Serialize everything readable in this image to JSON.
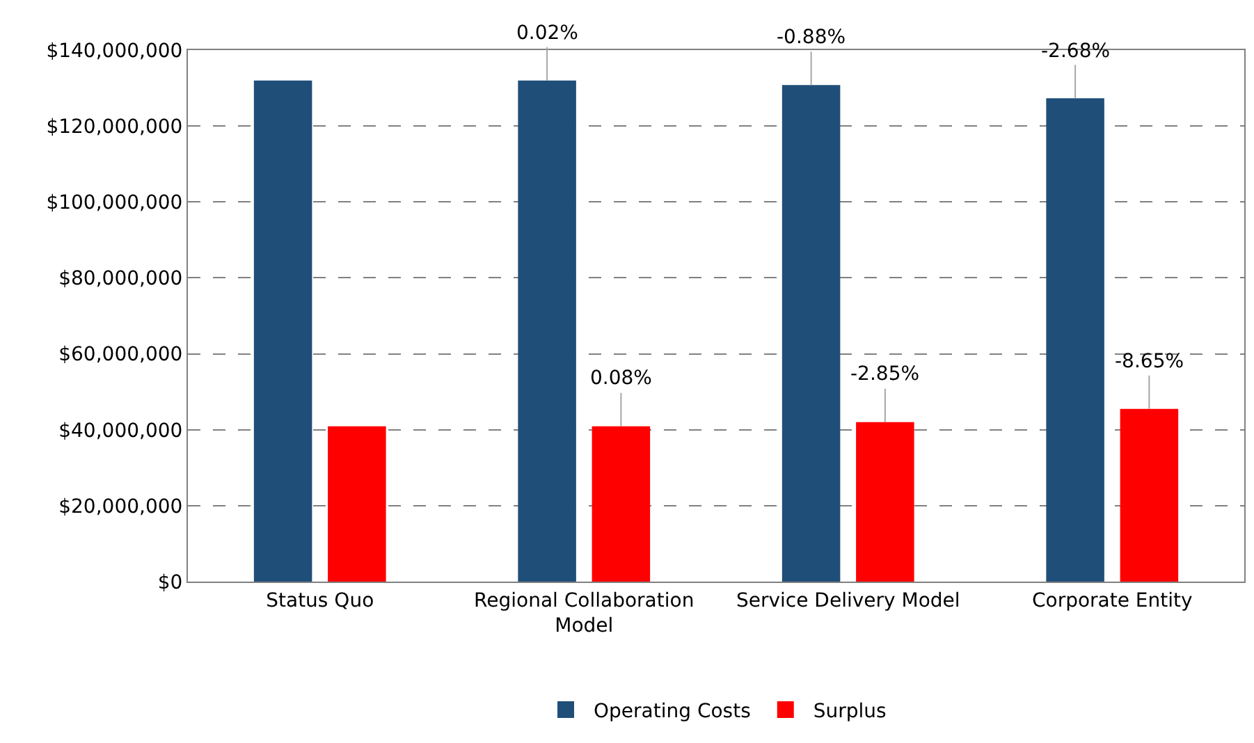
{
  "chart_data": {
    "type": "bar",
    "categories": [
      "Status Quo",
      "Regional Collaboration Model",
      "Service Delivery Model",
      "Corporate Entity"
    ],
    "series": [
      {
        "name": "Operating Costs",
        "color": "#1f4e79",
        "values": [
          132000000,
          132000000,
          130800000,
          127300000
        ]
      },
      {
        "name": "Surplus",
        "color": "#ff0000",
        "values": [
          40900000,
          40900000,
          42000000,
          45500000
        ]
      }
    ],
    "annotations": [
      {
        "text": "0.02%",
        "y": 132000000
      },
      {
        "text": "-0.88%",
        "y": 130800000
      },
      {
        "text": "-2.68%",
        "y": 127300000
      },
      {
        "text": "0.08%",
        "y": 40900000
      },
      {
        "text": "-2.85%",
        "y": 42000000
      },
      {
        "text": "-8.65%",
        "y": 45500000
      }
    ],
    "ylim": [
      0,
      140000000
    ],
    "yticks": [
      {
        "value": 0,
        "label": "$0"
      },
      {
        "value": 20000000,
        "label": "$20,000,000"
      },
      {
        "value": 40000000,
        "label": "$40,000,000"
      },
      {
        "value": 60000000,
        "label": "$60,000,000"
      },
      {
        "value": 80000000,
        "label": "$80,000,000"
      },
      {
        "value": 100000000,
        "label": "$100,000,000"
      },
      {
        "value": 120000000,
        "label": "$120,000,000"
      },
      {
        "value": 140000000,
        "label": "$140,000,000"
      }
    ],
    "grid": "y",
    "legend": "bottom"
  }
}
